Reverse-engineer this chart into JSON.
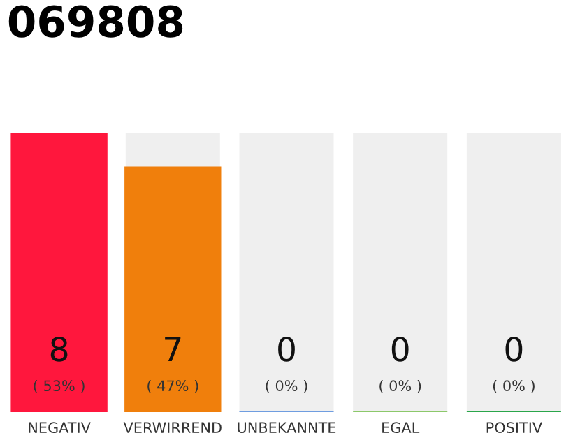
{
  "chart_data": {
    "type": "bar",
    "title": "069808",
    "categories": [
      "NEGATIV",
      "VERWIRREND",
      "UNBEKANNTE",
      "EGAL",
      "POSITIV"
    ],
    "values": [
      8,
      7,
      0,
      0,
      0
    ],
    "colors": [
      "#ff173d",
      "#f07f0c",
      "#6f9de0",
      "#8cc86a",
      "#2aa64a"
    ],
    "value_labels": [
      "8",
      "7",
      "0",
      "0",
      "0"
    ],
    "annotations": [
      "( 53% )",
      "( 47% )",
      "( 0% )",
      "( 0% )",
      "( 0% )"
    ],
    "grid": false,
    "legend": false
  }
}
